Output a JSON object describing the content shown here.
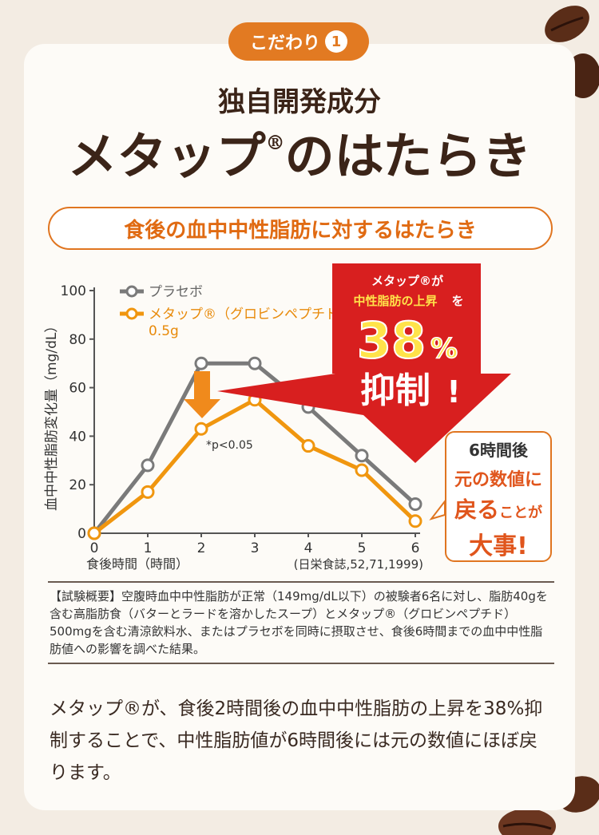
{
  "badge": {
    "label": "こだわり",
    "number": "1"
  },
  "heading": {
    "line1": "独自開発成分",
    "line2_main": "メタップ",
    "line2_reg": "®",
    "line2_tail": "のはたらき"
  },
  "subtitle": "食後の血中中性脂肪に対するはたらき",
  "colors": {
    "accent": "#e07520",
    "placebo": "#7a7a7a",
    "metapp": "#f0960f",
    "banner": "#d81f1f"
  },
  "chart_data": {
    "type": "line",
    "x": [
      0,
      1,
      2,
      3,
      4,
      5,
      6
    ],
    "xticks": [
      "0",
      "1",
      "2",
      "3",
      "4",
      "5",
      "6"
    ],
    "yticks": [
      "0",
      "20",
      "40",
      "60",
      "80",
      "100"
    ],
    "ylim": [
      0,
      100
    ],
    "xlim": [
      0,
      6
    ],
    "xlabel": "食後時間（時間）",
    "ylabel": "血中中性脂肪変化量（mg/dL）",
    "source": "(日栄食誌,52,71,1999)",
    "significance": "*p<0.05",
    "legend_placement": "top-left",
    "series": [
      {
        "name": "プラセボ",
        "values": [
          0,
          28,
          70,
          70,
          52,
          32,
          12
        ]
      },
      {
        "name": "メタップ®（グロビンペプチド）",
        "name_sub": "0.5g",
        "values": [
          0,
          17,
          43,
          55,
          36,
          26,
          5
        ]
      }
    ]
  },
  "banner": {
    "line1": "メタップ®が",
    "line2a": "中性脂肪の上昇",
    "line2b": "を",
    "percent": "38",
    "percent_unit": "%",
    "action": "抑制",
    "exclaim": "!"
  },
  "callout": {
    "l1": "6時間後",
    "l2": "元の数値に",
    "l3a": "戻る",
    "l3b": "ことが",
    "l4": "大事!"
  },
  "note": "【試験概要】空腹時血中中性脂肪が正常（149mg/dL以下）の被験者6名に対し、脂肪40gを含む高脂肪食（バターとラードを溶かしたスープ）とメタップ®（グロビンペプチド）500mgを含む清涼飲料水、またはプラセボを同時に摂取させ、食後6時間までの血中中性脂肪値への影響を調べた結果。",
  "summary": "メタップ®が、食後2時間後の血中中性脂肪の上昇を38%抑制することで、中性脂肪値が6時間後には元の数値にほぼ戻ります。"
}
